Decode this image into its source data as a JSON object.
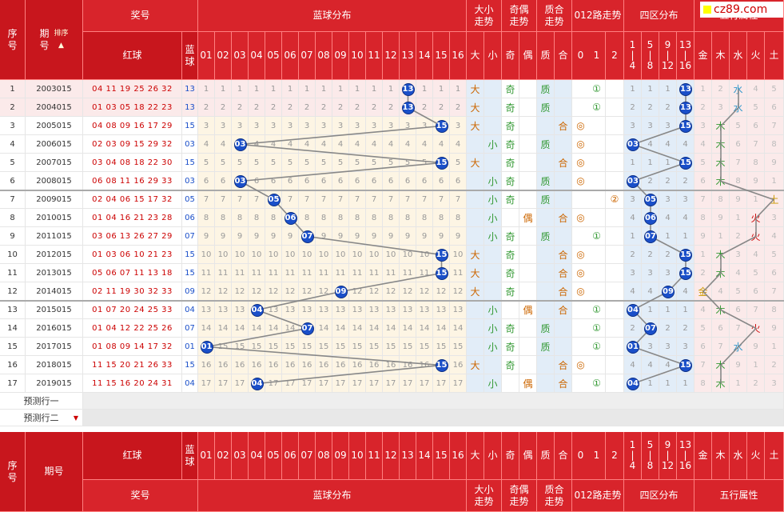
{
  "logo": "cz89.com",
  "header": {
    "seq": "序号",
    "period": "期号",
    "sort": "排序",
    "prize": "奖号",
    "blue_dist": "蓝球分布",
    "big_small": "大小走势",
    "odd_even": "奇偶走势",
    "prime": "质合走势",
    "road012": "012路走势",
    "zone4": "四区分布",
    "wuxing": "五行属性",
    "red": "红球",
    "blue": "蓝球",
    "blue_nums": [
      "01",
      "02",
      "03",
      "04",
      "05",
      "06",
      "07",
      "08",
      "09",
      "10",
      "11",
      "12",
      "13",
      "14",
      "15",
      "16"
    ],
    "bs": [
      "大",
      "小"
    ],
    "oe": [
      "奇",
      "偶"
    ],
    "pc": [
      "质",
      "合"
    ],
    "r012": [
      "0",
      "1",
      "2"
    ],
    "zones": [
      "1\n|\n4",
      "5\n|\n8",
      "9\n|\n12",
      "13\n|\n16"
    ],
    "wx": [
      "金",
      "木",
      "水",
      "火",
      "土"
    ]
  },
  "predict": [
    "预测行一",
    "预测行二"
  ],
  "rows": [
    {
      "i": "1",
      "p": "2003015",
      "red": "04 11 19 25 26 32",
      "blue": "13",
      "bs": "大",
      "oe": "奇",
      "pc": "质",
      "r": "①",
      "z": "13",
      "wx": "水"
    },
    {
      "i": "2",
      "p": "2004015",
      "red": "01 03 05 18 22 23",
      "blue": "13",
      "bs": "大",
      "oe": "奇",
      "pc": "质",
      "r": "①",
      "z": "13",
      "wx": "水"
    },
    {
      "i": "3",
      "p": "2005015",
      "red": "04 08 09 16 17 29",
      "blue": "15",
      "bs": "大",
      "oe": "奇",
      "pc": "合",
      "r": "◎",
      "z": "15",
      "wx": "木"
    },
    {
      "i": "4",
      "p": "2006015",
      "red": "02 03 09 15 29 32",
      "blue": "03",
      "bs": "小",
      "oe": "奇",
      "pc": "质",
      "r": "◎",
      "z": "03",
      "wx": "木"
    },
    {
      "i": "5",
      "p": "2007015",
      "red": "03 04 08 18 22 30",
      "blue": "15",
      "bs": "大",
      "oe": "奇",
      "pc": "合",
      "r": "◎",
      "z": "15",
      "wx": "木"
    },
    {
      "i": "6",
      "p": "2008015",
      "red": "06 08 11 16 29 33",
      "blue": "03",
      "bs": "小",
      "oe": "奇",
      "pc": "质",
      "r": "◎",
      "z": "03",
      "wx": "木"
    },
    {
      "i": "7",
      "p": "2009015",
      "red": "02 04 06 15 17 32",
      "blue": "05",
      "bs": "小",
      "oe": "奇",
      "pc": "质",
      "r": "②",
      "z": "05",
      "wx": "土"
    },
    {
      "i": "8",
      "p": "2010015",
      "red": "01 04 16 21 23 28",
      "blue": "06",
      "bs": "小",
      "oe": "偶",
      "pc": "合",
      "r": "◎",
      "z": "06",
      "wx": "火"
    },
    {
      "i": "9",
      "p": "2011015",
      "red": "03 06 13 26 27 29",
      "blue": "07",
      "bs": "小",
      "oe": "奇",
      "pc": "质",
      "r": "①",
      "z": "07",
      "wx": "火"
    },
    {
      "i": "10",
      "p": "2012015",
      "red": "01 03 06 10 21 23",
      "blue": "15",
      "bs": "大",
      "oe": "奇",
      "pc": "合",
      "r": "◎",
      "z": "15",
      "wx": "木"
    },
    {
      "i": "11",
      "p": "2013015",
      "red": "05 06 07 11 13 18",
      "blue": "15",
      "bs": "大",
      "oe": "奇",
      "pc": "合",
      "r": "◎",
      "z": "15",
      "wx": "木"
    },
    {
      "i": "12",
      "p": "2014015",
      "red": "02 11 19 30 32 33",
      "blue": "09",
      "bs": "大",
      "oe": "奇",
      "pc": "合",
      "r": "◎",
      "z": "09",
      "wx": "金"
    },
    {
      "i": "13",
      "p": "2015015",
      "red": "01 07 20 24 25 33",
      "blue": "04",
      "bs": "小",
      "oe": "偶",
      "pc": "合",
      "r": "①",
      "z": "04",
      "wx": "木"
    },
    {
      "i": "14",
      "p": "2016015",
      "red": "01 04 12 22 25 26",
      "blue": "07",
      "bs": "小",
      "oe": "奇",
      "pc": "质",
      "r": "①",
      "z": "07",
      "wx": "火"
    },
    {
      "i": "15",
      "p": "2017015",
      "red": "01 08 09 14 17 32",
      "blue": "01",
      "bs": "小",
      "oe": "奇",
      "pc": "质",
      "r": "①",
      "z": "01",
      "wx": "水"
    },
    {
      "i": "16",
      "p": "2018015",
      "red": "11 15 20 21 26 33",
      "blue": "15",
      "bs": "大",
      "oe": "奇",
      "pc": "合",
      "r": "◎",
      "z": "15",
      "wx": "木"
    },
    {
      "i": "17",
      "p": "2019015",
      "red": "11 15 16 20 24 31",
      "blue": "04",
      "bs": "小",
      "oe": "偶",
      "pc": "合",
      "r": "①",
      "z": "04",
      "wx": "木"
    }
  ],
  "colors": {
    "header": "#d8242b",
    "ball": "#1a4fc9",
    "band_blue": "#fdf5e4",
    "band_zone": "#e2edf8"
  }
}
